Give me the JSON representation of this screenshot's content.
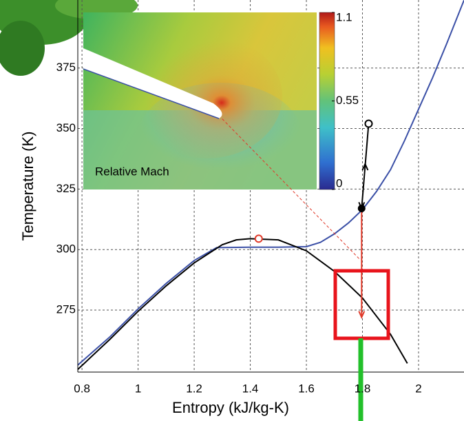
{
  "chart_data": {
    "type": "line",
    "x_label": "Entropy (kJ/kg-K)",
    "y_label": "Temperature (K)",
    "xlim": [
      0.785,
      2.162
    ],
    "ylim": [
      249.4,
      403.1
    ],
    "xticks": [
      0.8,
      1,
      1.2,
      1.4,
      1.6,
      1.8,
      2
    ],
    "yticks": [
      275,
      300,
      325,
      350,
      375
    ],
    "grid": true,
    "series": [
      {
        "color": "#3a4fa6",
        "x": [
          0.785,
          0.9,
          1.0,
          1.1,
          1.2,
          1.28,
          1.4,
          1.5,
          1.6,
          1.65,
          1.7,
          1.75,
          1.8,
          1.85,
          1.9,
          1.95,
          2.0,
          2.05,
          2.1,
          2.162
        ],
        "values": [
          252.3,
          264,
          275.5,
          286,
          295.5,
          300.8,
          301,
          301,
          301.2,
          303,
          306.5,
          311,
          316.5,
          324,
          333,
          345,
          358,
          371,
          385,
          403
        ]
      },
      {
        "color": "#000000",
        "x": [
          0.785,
          0.9,
          1.0,
          1.1,
          1.2,
          1.3,
          1.35,
          1.4,
          1.5,
          1.6,
          1.7,
          1.8,
          1.9,
          1.96
        ],
        "values": [
          250.5,
          263,
          274.5,
          285,
          294.5,
          302,
          304,
          304.5,
          304,
          299.5,
          291,
          280,
          265,
          253
        ]
      },
      {
        "color": "#000000",
        "x": [
          1.822,
          1.797
        ],
        "values": [
          352,
          317
        ]
      },
      {
        "color": "#e03a2a",
        "x": [
          1.797,
          1.797
        ],
        "values": [
          317,
          272
        ]
      },
      {
        "color": "#e03a2a",
        "dashed": true,
        "x": [
          1.3,
          1.79
        ],
        "values": [
          354,
          296
        ]
      },
      {
        "color": "#e03a2a",
        "marker": "open",
        "x": [
          1.43
        ],
        "values": [
          304.5
        ]
      },
      {
        "color": "#000000",
        "marker": "open",
        "x": [
          1.822
        ],
        "values": [
          352
        ]
      },
      {
        "color": "#000000",
        "marker": "filled",
        "x": [
          1.797
        ],
        "values": [
          317
        ]
      }
    ],
    "inset": {
      "label": "Relative Mach",
      "clim": [
        0,
        1.1
      ],
      "colorbar_ticks": [
        0,
        0.55,
        1.1
      ]
    }
  }
}
